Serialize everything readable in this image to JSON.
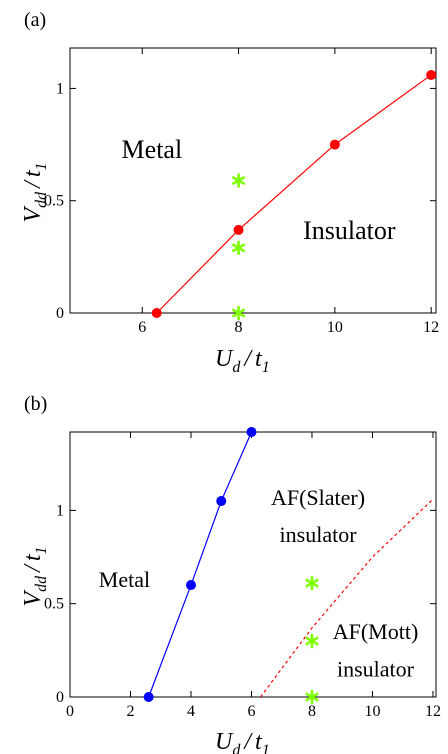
{
  "chart_data": [
    {
      "type": "line",
      "panel_label": "(a)",
      "xlabel": {
        "main": "U",
        "sub": "d",
        "slash": "/",
        "den": "t",
        "den_sub": "1"
      },
      "ylabel": {
        "main": "V",
        "sub": "dd",
        "slash": "/",
        "den": "t",
        "den_sub": "1"
      },
      "xlim": [
        4.5,
        12.1
      ],
      "ylim": [
        0,
        1.18
      ],
      "xticks": [
        6,
        8,
        10,
        12
      ],
      "xtick_labels": [
        "6",
        "8",
        "10",
        "12"
      ],
      "yticks": [
        0,
        0.5,
        1
      ],
      "ytick_labels": [
        "0",
        "0.5",
        "1"
      ],
      "series": [
        {
          "color": "#ff0000",
          "marker": "circle",
          "x": [
            6.3,
            8,
            10,
            12
          ],
          "y": [
            0,
            0.37,
            0.75,
            1.06
          ]
        }
      ],
      "stars": {
        "color": "#7fff00",
        "x": [
          8,
          8,
          8
        ],
        "y": [
          0,
          0.29,
          0.59
        ]
      },
      "annotations": [
        {
          "text": "Metal",
          "x": 6.2,
          "y": 0.69
        },
        {
          "text": "Insulator",
          "x": 10.3,
          "y": 0.33
        }
      ]
    },
    {
      "type": "line",
      "panel_label": "(b)",
      "xlabel": {
        "main": "U",
        "sub": "d",
        "slash": "/",
        "den": "t",
        "den_sub": "1"
      },
      "ylabel": {
        "main": "V",
        "sub": "dd",
        "slash": "/",
        "den": "t",
        "den_sub": "1"
      },
      "xlim": [
        0,
        12.1
      ],
      "ylim": [
        0,
        1.42
      ],
      "xticks": [
        0,
        2,
        4,
        6,
        8,
        10,
        12
      ],
      "xtick_labels": [
        "0",
        "2",
        "4",
        "6",
        "8",
        "10",
        "12"
      ],
      "yticks": [
        0,
        0.5,
        1
      ],
      "ytick_labels": [
        "0",
        "0.5",
        "1"
      ],
      "series": [
        {
          "color": "#0000ff",
          "marker": "circle",
          "x": [
            2.6,
            4,
            5,
            6
          ],
          "y": [
            0,
            0.6,
            1.05,
            1.42
          ]
        },
        {
          "color": "#ff0000",
          "marker": "none",
          "dashed": true,
          "x": [
            6.3,
            8,
            10,
            12
          ],
          "y": [
            0,
            0.37,
            0.75,
            1.06
          ]
        }
      ],
      "stars": {
        "color": "#7fff00",
        "x": [
          8,
          8,
          8
        ],
        "y": [
          0,
          0.3,
          0.61
        ]
      },
      "annotations": [
        {
          "text": "Metal",
          "x": 1.8,
          "y": 0.59
        },
        {
          "text": "AF(Slater)",
          "x": 8.2,
          "y": 1.03
        },
        {
          "text": "insulator",
          "x": 8.2,
          "y": 0.83
        },
        {
          "text": "AF(Mott)",
          "x": 10.1,
          "y": 0.31
        },
        {
          "text": "insulator",
          "x": 10.1,
          "y": 0.11
        }
      ]
    }
  ]
}
